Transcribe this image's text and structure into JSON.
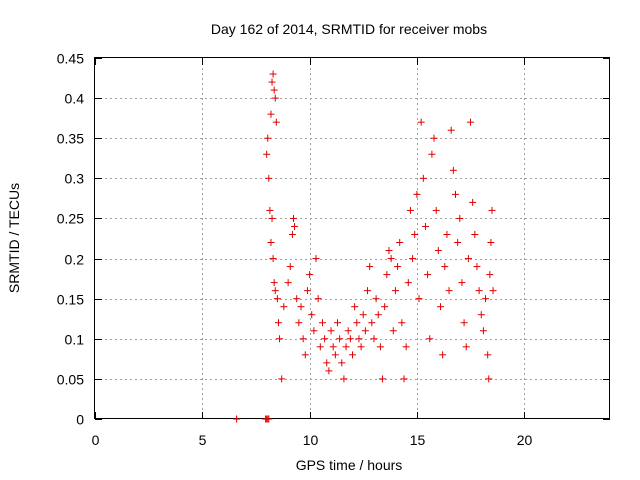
{
  "chart_data": {
    "type": "scatter",
    "title": "Day 162 of 2014, SRMTID for receiver mobs",
    "xlabel": "GPS time / hours",
    "ylabel": "SRMTID / TECUs",
    "xlim": [
      0,
      24
    ],
    "ylim": [
      0,
      0.45
    ],
    "xticks": [
      0,
      5,
      10,
      15,
      20
    ],
    "xtick_labels": [
      "0",
      "5",
      "10",
      "15",
      "20"
    ],
    "yticks": [
      0,
      0.05,
      0.1,
      0.15,
      0.2,
      0.25,
      0.3,
      0.35,
      0.4,
      0.45
    ],
    "ytick_labels": [
      "0",
      "0.05",
      "0.1",
      "0.15",
      "0.2",
      "0.25",
      "0.3",
      "0.35",
      "0.4",
      "0.45"
    ],
    "grid": true,
    "marker": "+",
    "color": "#e00000",
    "series": [
      {
        "name": "mobs",
        "points": [
          [
            6.6,
            0.0
          ],
          [
            7.95,
            0.0
          ],
          [
            8.0,
            0.0
          ],
          [
            8.05,
            0.0
          ],
          [
            8.1,
            0.0
          ],
          [
            8.0,
            0.33
          ],
          [
            8.05,
            0.35
          ],
          [
            8.1,
            0.3
          ],
          [
            8.15,
            0.26
          ],
          [
            8.2,
            0.38
          ],
          [
            8.25,
            0.42
          ],
          [
            8.3,
            0.43
          ],
          [
            8.35,
            0.41
          ],
          [
            8.4,
            0.4
          ],
          [
            8.45,
            0.37
          ],
          [
            8.2,
            0.22
          ],
          [
            8.25,
            0.25
          ],
          [
            8.3,
            0.2
          ],
          [
            8.35,
            0.17
          ],
          [
            8.4,
            0.16
          ],
          [
            8.5,
            0.15
          ],
          [
            8.55,
            0.12
          ],
          [
            8.6,
            0.1
          ],
          [
            8.7,
            0.05
          ],
          [
            8.8,
            0.14
          ],
          [
            9.0,
            0.17
          ],
          [
            9.1,
            0.19
          ],
          [
            9.2,
            0.23
          ],
          [
            9.25,
            0.25
          ],
          [
            9.3,
            0.24
          ],
          [
            9.4,
            0.15
          ],
          [
            9.5,
            0.12
          ],
          [
            9.6,
            0.14
          ],
          [
            9.7,
            0.1
          ],
          [
            9.8,
            0.08
          ],
          [
            9.9,
            0.16
          ],
          [
            10.0,
            0.18
          ],
          [
            10.1,
            0.13
          ],
          [
            10.2,
            0.11
          ],
          [
            10.3,
            0.2
          ],
          [
            10.4,
            0.15
          ],
          [
            10.5,
            0.09
          ],
          [
            10.6,
            0.12
          ],
          [
            10.7,
            0.1
          ],
          [
            10.8,
            0.07
          ],
          [
            10.9,
            0.06
          ],
          [
            11.0,
            0.11
          ],
          [
            11.1,
            0.09
          ],
          [
            11.2,
            0.08
          ],
          [
            11.3,
            0.12
          ],
          [
            11.4,
            0.1
          ],
          [
            11.5,
            0.07
          ],
          [
            11.6,
            0.05
          ],
          [
            11.7,
            0.09
          ],
          [
            11.8,
            0.11
          ],
          [
            11.9,
            0.1
          ],
          [
            12.0,
            0.08
          ],
          [
            12.1,
            0.14
          ],
          [
            12.2,
            0.12
          ],
          [
            12.3,
            0.1
          ],
          [
            12.4,
            0.09
          ],
          [
            12.5,
            0.13
          ],
          [
            12.6,
            0.11
          ],
          [
            12.7,
            0.16
          ],
          [
            12.8,
            0.19
          ],
          [
            12.9,
            0.12
          ],
          [
            13.0,
            0.1
          ],
          [
            13.1,
            0.15
          ],
          [
            13.2,
            0.13
          ],
          [
            13.3,
            0.09
          ],
          [
            13.4,
            0.05
          ],
          [
            13.5,
            0.14
          ],
          [
            13.6,
            0.18
          ],
          [
            13.7,
            0.21
          ],
          [
            13.8,
            0.2
          ],
          [
            13.9,
            0.11
          ],
          [
            14.0,
            0.16
          ],
          [
            14.1,
            0.19
          ],
          [
            14.2,
            0.22
          ],
          [
            14.3,
            0.12
          ],
          [
            14.4,
            0.05
          ],
          [
            14.5,
            0.09
          ],
          [
            14.6,
            0.17
          ],
          [
            14.7,
            0.26
          ],
          [
            14.8,
            0.2
          ],
          [
            14.9,
            0.23
          ],
          [
            15.0,
            0.28
          ],
          [
            15.1,
            0.15
          ],
          [
            15.2,
            0.37
          ],
          [
            15.3,
            0.3
          ],
          [
            15.4,
            0.24
          ],
          [
            15.5,
            0.18
          ],
          [
            15.6,
            0.1
          ],
          [
            15.7,
            0.33
          ],
          [
            15.8,
            0.35
          ],
          [
            15.9,
            0.26
          ],
          [
            16.0,
            0.21
          ],
          [
            16.1,
            0.14
          ],
          [
            16.2,
            0.08
          ],
          [
            16.3,
            0.19
          ],
          [
            16.4,
            0.23
          ],
          [
            16.5,
            0.16
          ],
          [
            16.6,
            0.36
          ],
          [
            16.7,
            0.31
          ],
          [
            16.8,
            0.28
          ],
          [
            16.9,
            0.22
          ],
          [
            17.0,
            0.25
          ],
          [
            17.1,
            0.17
          ],
          [
            17.2,
            0.12
          ],
          [
            17.3,
            0.09
          ],
          [
            17.4,
            0.2
          ],
          [
            17.5,
            0.37
          ],
          [
            17.6,
            0.27
          ],
          [
            17.7,
            0.23
          ],
          [
            17.8,
            0.19
          ],
          [
            17.9,
            0.16
          ],
          [
            18.0,
            0.13
          ],
          [
            18.1,
            0.11
          ],
          [
            18.2,
            0.15
          ],
          [
            18.3,
            0.08
          ],
          [
            18.35,
            0.05
          ],
          [
            18.4,
            0.18
          ],
          [
            18.45,
            0.22
          ],
          [
            18.5,
            0.26
          ],
          [
            18.55,
            0.16
          ]
        ]
      }
    ]
  }
}
